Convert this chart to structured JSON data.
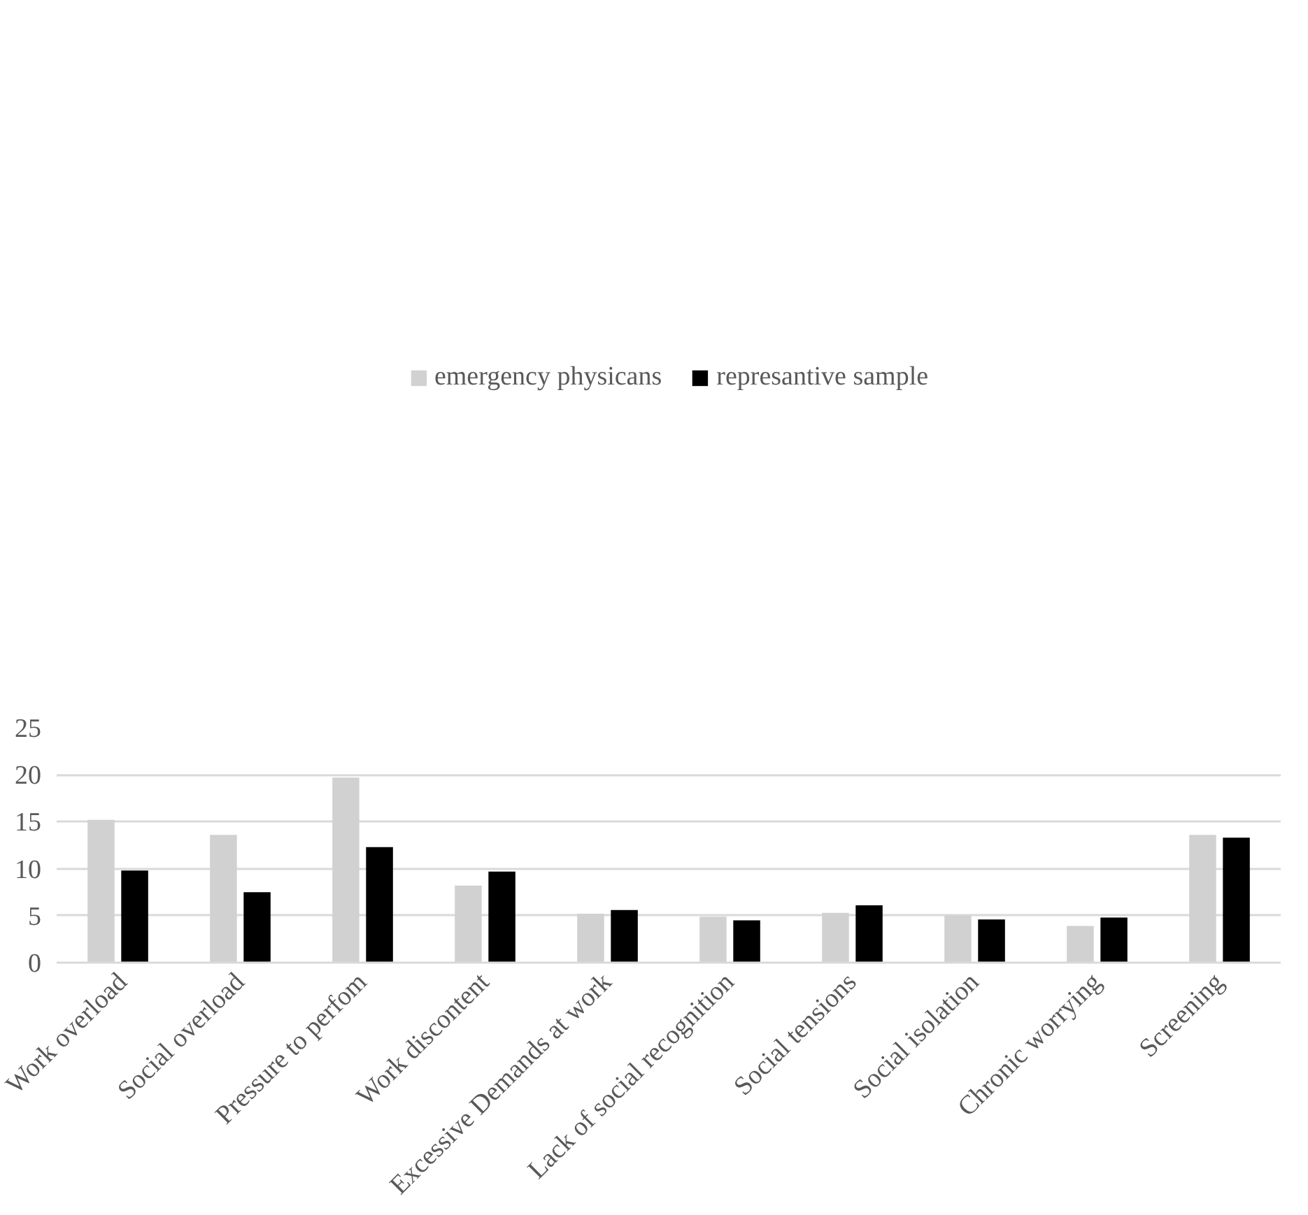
{
  "chart_data": {
    "type": "bar",
    "categories": [
      "Work overload",
      "Social overload",
      "Pressure to perfom",
      "Work discontent",
      "Excessive Demands at work",
      "Lack of social recognition",
      "Social tensions",
      "Social isolation",
      "Chronic worrying",
      "Screening"
    ],
    "series": [
      {
        "name": "emergency physicans",
        "color": "#d0d1d0",
        "values": [
          15.2,
          13.6,
          19.7,
          8.2,
          5.2,
          4.9,
          5.3,
          5.0,
          3.9,
          13.6
        ]
      },
      {
        "name": "represantive sample",
        "color": "#000000",
        "values": [
          9.8,
          7.5,
          12.3,
          9.7,
          5.6,
          4.5,
          6.1,
          4.6,
          4.8,
          13.3
        ]
      }
    ],
    "ylim": [
      0,
      25
    ],
    "yticks": [
      0,
      5,
      10,
      15,
      20,
      25
    ],
    "grid": "y",
    "legend": "top"
  }
}
